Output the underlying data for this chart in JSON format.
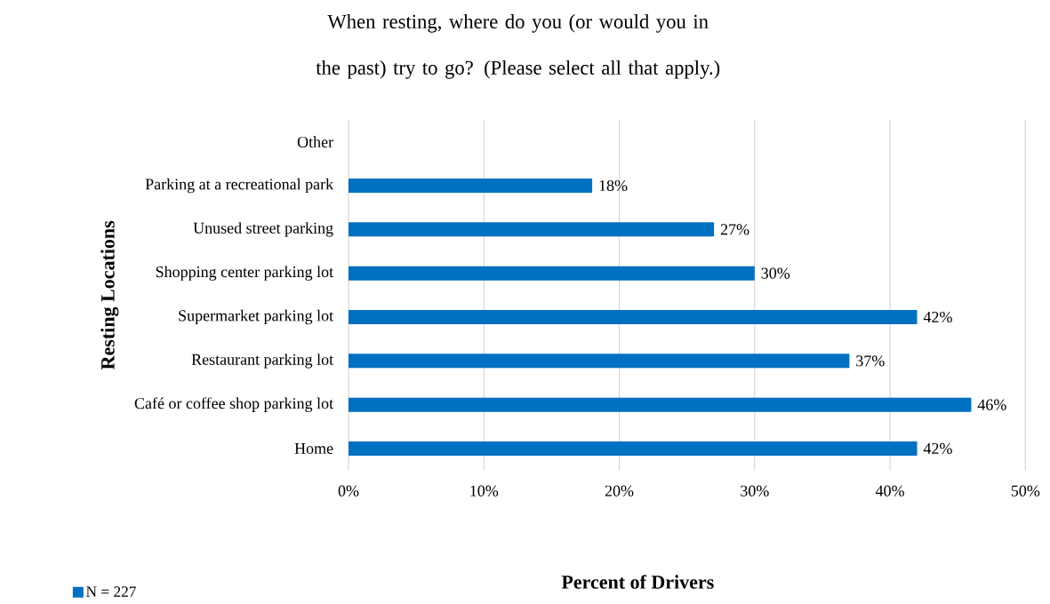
{
  "chart_data": {
    "type": "bar",
    "orientation": "horizontal",
    "title": "When resting, where do you (or would you in the past) try to go? (Please select all that apply.)",
    "xlabel": "Percent of Drivers",
    "ylabel": "Resting Locations",
    "categories": [
      "Other",
      "Parking at a recreational park",
      "Unused street parking",
      "Shopping center parking lot",
      "Supermarket parking lot",
      "Restaurant parking lot",
      "Café or coffee shop parking lot",
      "Home"
    ],
    "series": [
      {
        "name": "N = 227",
        "color": "#0070c0",
        "values": [
          null,
          18,
          27,
          30,
          42,
          37,
          46,
          42
        ],
        "value_labels": [
          null,
          "18%",
          "27%",
          "30%",
          "42%",
          "37%",
          "46%",
          "42%"
        ]
      }
    ],
    "xlim": [
      0,
      50
    ],
    "xticks": [
      {
        "value": 0,
        "label": "0%"
      },
      {
        "value": 10,
        "label": "10%"
      },
      {
        "value": 20,
        "label": "20%"
      },
      {
        "value": 30,
        "label": "30%"
      },
      {
        "value": 40,
        "label": "40%"
      },
      {
        "value": 50,
        "label": "50%"
      }
    ],
    "grid": "x",
    "legend": "bottom left"
  }
}
